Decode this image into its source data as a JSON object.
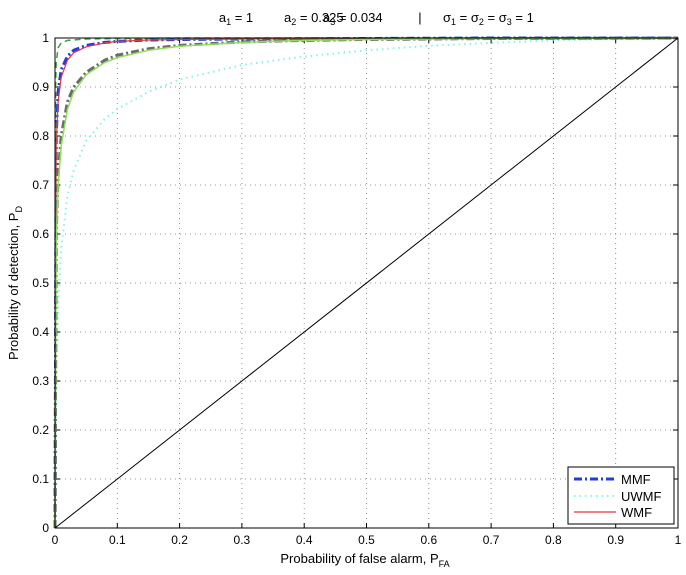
{
  "chart_data": {
    "type": "line",
    "title": {
      "a1": {
        "sym": "a",
        "sub": "1",
        "rest": " = 1"
      },
      "a2": {
        "sym": "a",
        "sub": "2",
        "rest": " = 0.325"
      },
      "a3": {
        "sym": "a",
        "sub": "3",
        "rest": " = 0.034"
      },
      "sep": "|",
      "sigma": {
        "sym": "σ",
        "s1": "1",
        "eq1": " = σ",
        "s2": "2",
        "eq2": " = σ",
        "s3": "3",
        "rest": " = 1"
      }
    },
    "xlabel": {
      "main": "Probability of false alarm, P",
      "sub": "FA"
    },
    "ylabel": {
      "main": "Probability of detection, P",
      "sub": "D"
    },
    "xlim": [
      0,
      1
    ],
    "ylim": [
      0,
      1
    ],
    "xticks": [
      "0",
      "0.1",
      "0.2",
      "0.3",
      "0.4",
      "0.5",
      "0.6",
      "0.7",
      "0.8",
      "0.9",
      "1"
    ],
    "yticks": [
      "0",
      "0.1",
      "0.2",
      "0.3",
      "0.4",
      "0.5",
      "0.6",
      "0.7",
      "0.8",
      "0.9",
      "1"
    ],
    "grid": true,
    "legend_position": "bottom-right",
    "series": [
      {
        "name": "MMF",
        "color": "#1f3fd8",
        "dash": "dashdot",
        "width": 3,
        "x": [
          0,
          0.002,
          0.005,
          0.01,
          0.02,
          0.03,
          0.05,
          0.08,
          0.1,
          0.15,
          0.2,
          0.3,
          0.5,
          0.7,
          1
        ],
        "y": [
          0,
          0.8,
          0.89,
          0.935,
          0.963,
          0.975,
          0.985,
          0.991,
          0.993,
          0.996,
          0.997,
          0.998,
          0.999,
          1,
          1
        ]
      },
      {
        "name": "UWMF",
        "color": "#7ff5e6",
        "dash": "dotted",
        "width": 2,
        "x": [
          0,
          0.002,
          0.005,
          0.01,
          0.02,
          0.03,
          0.05,
          0.08,
          0.1,
          0.15,
          0.2,
          0.3,
          0.4,
          0.5,
          0.6,
          0.7,
          0.8,
          0.9,
          1
        ],
        "y": [
          0,
          0.3,
          0.45,
          0.57,
          0.68,
          0.73,
          0.79,
          0.835,
          0.855,
          0.89,
          0.915,
          0.945,
          0.962,
          0.975,
          0.984,
          0.99,
          0.995,
          0.998,
          1
        ]
      },
      {
        "name": "WMF",
        "color": "#e8363f",
        "dash": "solid",
        "width": 1.2,
        "x": [
          0,
          0.002,
          0.005,
          0.01,
          0.02,
          0.03,
          0.05,
          0.08,
          0.1,
          0.15,
          0.2,
          0.3,
          0.5,
          0.7,
          1
        ],
        "y": [
          0,
          0.78,
          0.87,
          0.92,
          0.955,
          0.97,
          0.982,
          0.99,
          0.993,
          0.996,
          0.997,
          0.998,
          0.999,
          1,
          1
        ]
      },
      {
        "color": "#6b6b6b",
        "dash": "dashdot",
        "width": 3,
        "x": [
          0,
          0.002,
          0.005,
          0.01,
          0.02,
          0.03,
          0.05,
          0.08,
          0.1,
          0.15,
          0.2,
          0.3,
          0.4,
          0.5,
          0.7,
          1
        ],
        "y": [
          0,
          0.6,
          0.72,
          0.8,
          0.87,
          0.9,
          0.93,
          0.955,
          0.965,
          0.978,
          0.985,
          0.992,
          0.995,
          0.997,
          0.999,
          1
        ]
      },
      {
        "color": "#8fe05a",
        "dash": "solid",
        "width": 1.5,
        "x": [
          0,
          0.002,
          0.005,
          0.01,
          0.02,
          0.03,
          0.05,
          0.08,
          0.1,
          0.15,
          0.2,
          0.3,
          0.4,
          0.5,
          0.7,
          1
        ],
        "y": [
          0,
          0.58,
          0.7,
          0.78,
          0.855,
          0.89,
          0.925,
          0.95,
          0.96,
          0.975,
          0.983,
          0.991,
          0.995,
          0.997,
          0.999,
          1
        ]
      },
      {
        "color": "#3aa33a",
        "dash": "dashed",
        "width": 1.5,
        "x": [
          0,
          0.001,
          0.002,
          0.005,
          0.01,
          0.02,
          0.05,
          0.1,
          0.2,
          1
        ],
        "y": [
          0,
          0.9,
          0.95,
          0.98,
          0.99,
          0.995,
          0.998,
          0.999,
          1,
          1
        ]
      },
      {
        "color": "#000000",
        "dash": "solid",
        "width": 1,
        "x": [
          0,
          1
        ],
        "y": [
          0,
          1
        ]
      }
    ]
  }
}
